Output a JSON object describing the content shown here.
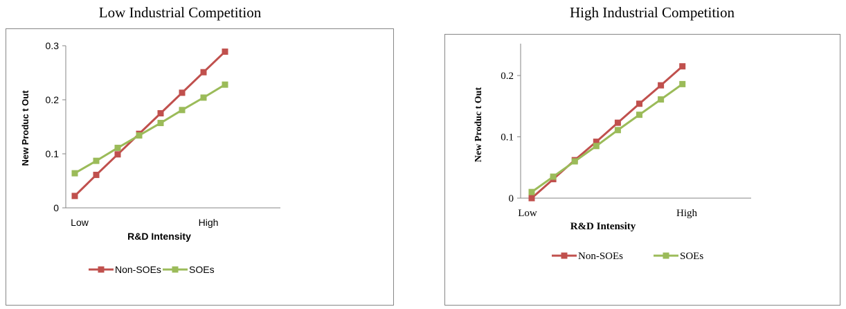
{
  "chart_data": [
    {
      "type": "line",
      "title": "Low Industrial Competition",
      "xlabel": "R&D Intensity",
      "ylabel": "New Produc t Out",
      "x_tick_labels": [
        "Low",
        "High"
      ],
      "y_tick_labels": [
        "0",
        "0.1",
        "0.2",
        "0.3"
      ],
      "ylim": [
        0,
        0.3
      ],
      "x": [
        1,
        2,
        3,
        4,
        5,
        6,
        7,
        8
      ],
      "series": [
        {
          "name": "Non-SOEs",
          "color": "#c0504d",
          "values": [
            0.022,
            0.061,
            0.099,
            0.137,
            0.175,
            0.213,
            0.251,
            0.289
          ]
        },
        {
          "name": "SOEs",
          "color": "#9bbb59",
          "values": [
            0.064,
            0.087,
            0.111,
            0.134,
            0.157,
            0.181,
            0.204,
            0.228
          ]
        }
      ],
      "legend_position": "bottom",
      "grid": false
    },
    {
      "type": "line",
      "title": "High Industrial Competition",
      "xlabel": "R&D Intensity",
      "ylabel": "New Produc t Out",
      "x_tick_labels": [
        "Low",
        "High"
      ],
      "y_tick_labels": [
        "0",
        "0.1",
        "0.2"
      ],
      "ylim": [
        0,
        0.25
      ],
      "x": [
        1,
        2,
        3,
        4,
        5,
        6,
        7,
        8
      ],
      "series": [
        {
          "name": "Non-SOEs",
          "color": "#c0504d",
          "values": [
            0.0,
            0.031,
            0.062,
            0.092,
            0.123,
            0.154,
            0.184,
            0.215
          ]
        },
        {
          "name": "SOEs",
          "color": "#9bbb59",
          "values": [
            0.01,
            0.035,
            0.06,
            0.085,
            0.111,
            0.136,
            0.161,
            0.186
          ]
        }
      ],
      "legend_position": "bottom",
      "grid": false
    }
  ]
}
